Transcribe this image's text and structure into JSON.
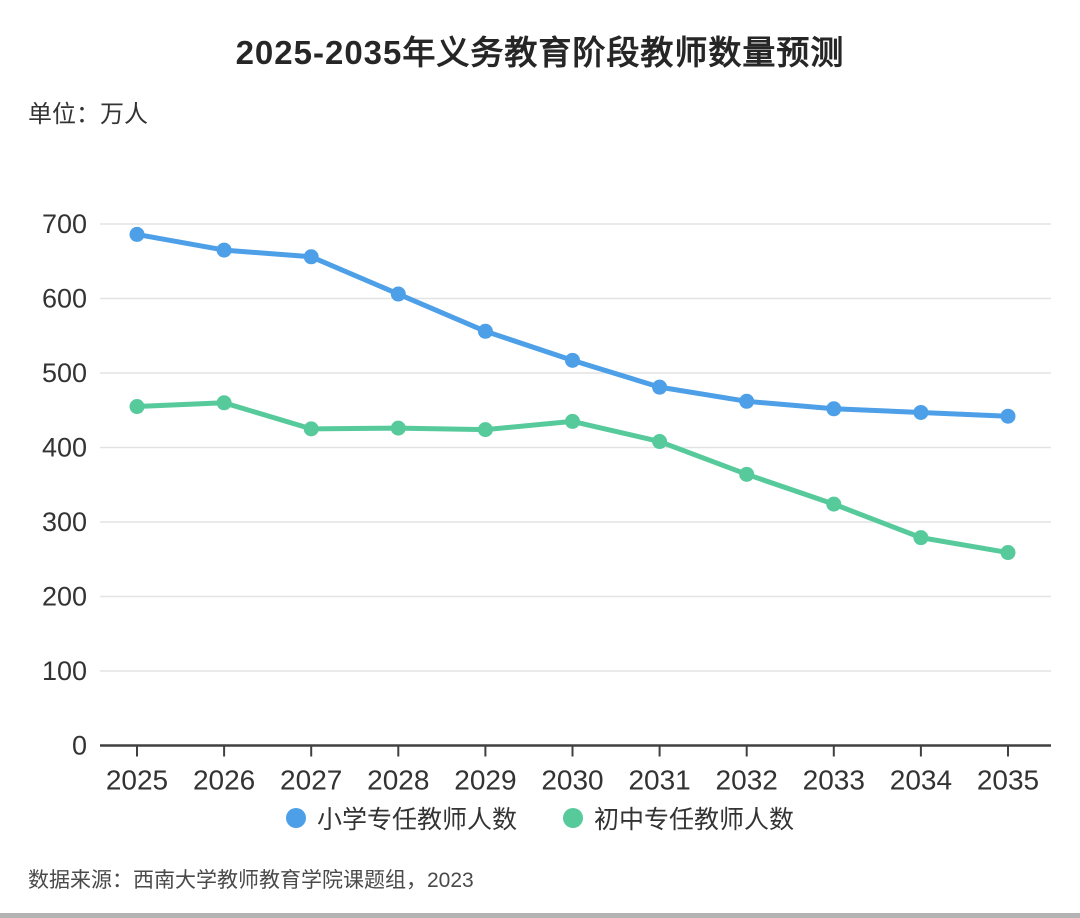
{
  "header": {
    "title": "2025-2035年义务教育阶段教师数量预测",
    "unit_label": "单位：万人"
  },
  "footer": {
    "source": "数据来源：西南大学教师教育学院课题组，2023"
  },
  "colors": {
    "primary_series": "#4D9FE8",
    "secondary_series": "#57CA9C",
    "gridline": "#e3e3e3",
    "axis": "#404040",
    "tick_label": "#333333",
    "title_text": "#262626",
    "bottom_bar": "#b3b3b3"
  },
  "chart_data": {
    "type": "line",
    "title": "2025-2035年义务教育阶段教师数量预测",
    "xlabel": "",
    "ylabel": "万人",
    "categories": [
      "2025",
      "2026",
      "2027",
      "2028",
      "2029",
      "2030",
      "2031",
      "2032",
      "2033",
      "2034",
      "2035"
    ],
    "series": [
      {
        "name": "小学专任教师人数",
        "color": "#4D9FE8",
        "values": [
          686,
          665,
          656,
          606,
          556,
          517,
          481,
          462,
          452,
          447,
          442
        ]
      },
      {
        "name": "初中专任教师人数",
        "color": "#57CA9C",
        "values": [
          455,
          460,
          425,
          426,
          424,
          435,
          408,
          364,
          324,
          279,
          259
        ]
      }
    ],
    "ylim": [
      0,
      700
    ],
    "ytick_interval": 100,
    "yticks": [
      0,
      100,
      200,
      300,
      400,
      500,
      600,
      700
    ],
    "grid": true,
    "legend_position": "bottom",
    "markers": true
  }
}
